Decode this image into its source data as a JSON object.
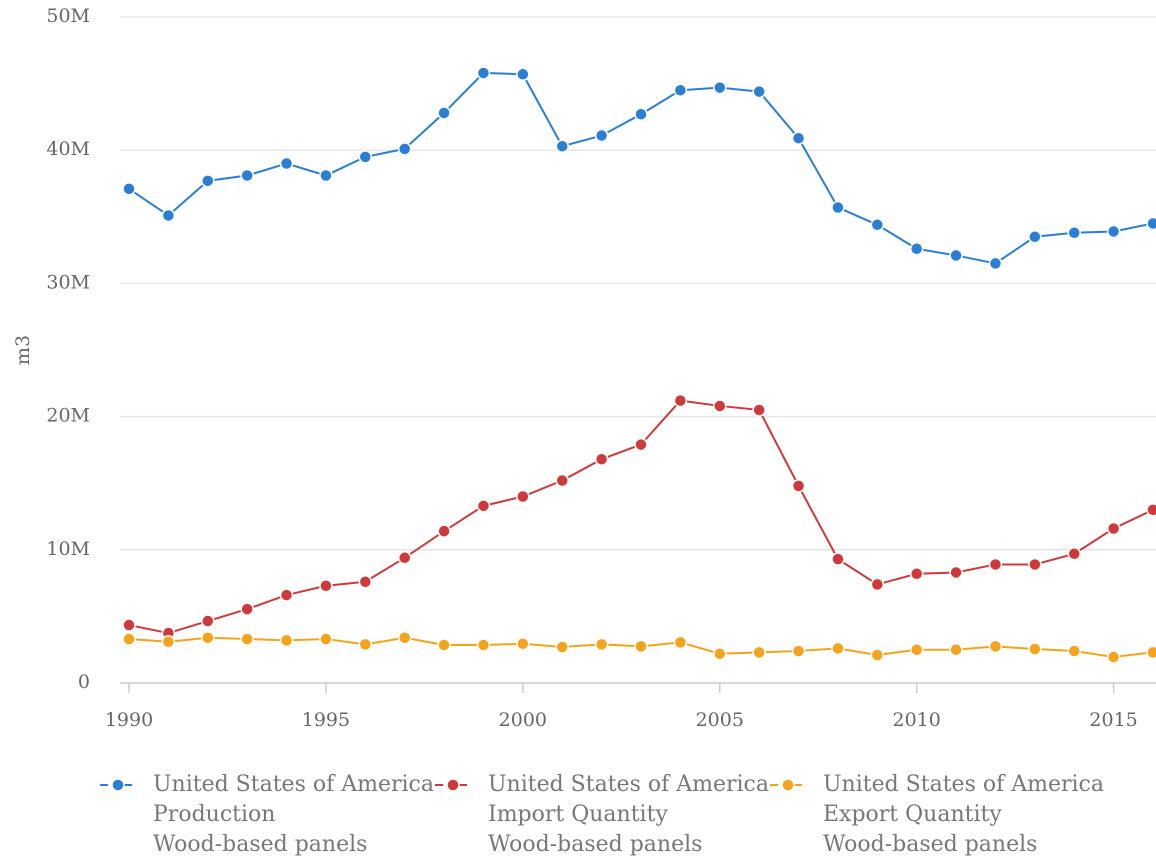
{
  "chart_data": {
    "type": "line",
    "y_label": "m3",
    "x": [
      1990,
      1991,
      1992,
      1993,
      1994,
      1995,
      1996,
      1997,
      1998,
      1999,
      2000,
      2001,
      2002,
      2003,
      2004,
      2005,
      2006,
      2007,
      2008,
      2009,
      2010,
      2011,
      2012,
      2013,
      2014,
      2015,
      2016
    ],
    "xlim": [
      1990,
      2016
    ],
    "xticks": [
      1990,
      1995,
      2000,
      2005,
      2010,
      2015
    ],
    "ylim": [
      0,
      50000000
    ],
    "yticks": [
      0,
      {
        "value": 10000000,
        "label": "10M"
      },
      {
        "value": 20000000,
        "label": "20M"
      },
      {
        "value": 30000000,
        "label": "30M"
      },
      {
        "value": 40000000,
        "label": "40M"
      },
      {
        "value": 50000000,
        "label": "50M"
      }
    ],
    "grid": true,
    "legend": "bottom",
    "series": [
      {
        "name": [
          "United States of America",
          "Production",
          "Wood-based panels"
        ],
        "color": "#2a7fd4",
        "values": [
          37100000,
          35100000,
          37700000,
          38100000,
          39000000,
          38100000,
          39500000,
          40100000,
          42800000,
          45800000,
          45700000,
          40300000,
          41100000,
          42700000,
          44500000,
          44700000,
          44400000,
          40900000,
          35700000,
          34400000,
          32600000,
          32100000,
          31500000,
          33500000,
          33800000,
          33900000,
          34500000
        ]
      },
      {
        "name": [
          "United States of America",
          "Import Quantity",
          "Wood-based panels"
        ],
        "color": "#d0393b",
        "values": [
          4350000,
          3750000,
          4650000,
          5550000,
          6600000,
          7300000,
          7600000,
          9400000,
          11400000,
          13300000,
          14000000,
          15200000,
          16800000,
          17900000,
          21200000,
          20800000,
          20500000,
          14800000,
          9300000,
          7400000,
          8200000,
          8300000,
          8900000,
          8900000,
          9700000,
          11600000,
          13000000
        ]
      },
      {
        "name": [
          "United States of America",
          "Export Quantity",
          "Wood-based panels"
        ],
        "color": "#f5a31a",
        "values": [
          3300000,
          3100000,
          3400000,
          3300000,
          3200000,
          3300000,
          2900000,
          3400000,
          2850000,
          2850000,
          2950000,
          2700000,
          2900000,
          2750000,
          3050000,
          2200000,
          2300000,
          2400000,
          2600000,
          2100000,
          2500000,
          2500000,
          2750000,
          2550000,
          2400000,
          1950000,
          2300000
        ]
      }
    ]
  }
}
